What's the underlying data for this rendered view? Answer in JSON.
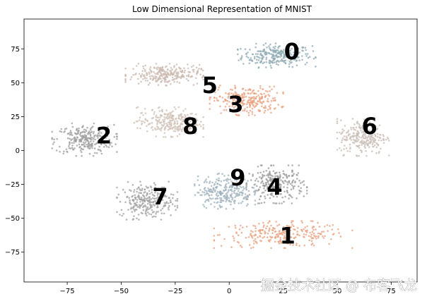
{
  "chart_data": {
    "type": "scatter",
    "title": "Low Dimensional Representation of MNIST",
    "xlabel": "",
    "ylabel": "",
    "xlim": [
      -95,
      87
    ],
    "ylim": [
      -97,
      97
    ],
    "xticks": [
      -75,
      -50,
      -25,
      0,
      25,
      50,
      75
    ],
    "yticks": [
      75,
      50,
      25,
      0,
      -25,
      -50,
      -75
    ],
    "grid": false,
    "clusters": [
      {
        "label": "0",
        "center": [
          22,
          70
        ],
        "spread": [
          18,
          9
        ],
        "color": "#8fa9b3",
        "label_pos": [
          29,
          73
        ]
      },
      {
        "label": "1",
        "center": [
          25,
          -62
        ],
        "spread": [
          32,
          10
        ],
        "color": "#e8a07e",
        "label_pos": [
          27,
          -63
        ]
      },
      {
        "label": "2",
        "center": [
          -67,
          8
        ],
        "spread": [
          15,
          12
        ],
        "color": "#9e9e9e",
        "label_pos": [
          -58,
          11
        ]
      },
      {
        "label": "3",
        "center": [
          8,
          37
        ],
        "spread": [
          17,
          11
        ],
        "color": "#e8a07e",
        "label_pos": [
          3,
          34
        ]
      },
      {
        "label": "4",
        "center": [
          22,
          -25
        ],
        "spread": [
          14,
          14
        ],
        "color": "#9a9a9a",
        "label_pos": [
          21,
          -27
        ]
      },
      {
        "label": "5",
        "center": [
          -30,
          56
        ],
        "spread": [
          18,
          8
        ],
        "color": "#c9b8ae",
        "label_pos": [
          -9,
          48
        ]
      },
      {
        "label": "6",
        "center": [
          62,
          10
        ],
        "spread": [
          12,
          14
        ],
        "color": "#c9bdb5",
        "label_pos": [
          65,
          18
        ]
      },
      {
        "label": "7",
        "center": [
          -38,
          -37
        ],
        "spread": [
          14,
          14
        ],
        "color": "#a0a0a0",
        "label_pos": [
          -32,
          -34
        ]
      },
      {
        "label": "8",
        "center": [
          -28,
          21
        ],
        "spread": [
          16,
          11
        ],
        "color": "#cfc0b5",
        "label_pos": [
          -18,
          18
        ]
      },
      {
        "label": "9",
        "center": [
          -2,
          -30
        ],
        "spread": [
          14,
          13
        ],
        "color": "#9fb2bd",
        "label_pos": [
          4,
          -20
        ]
      }
    ]
  },
  "watermark": "掘金技术社区 @ 布客飞龙"
}
